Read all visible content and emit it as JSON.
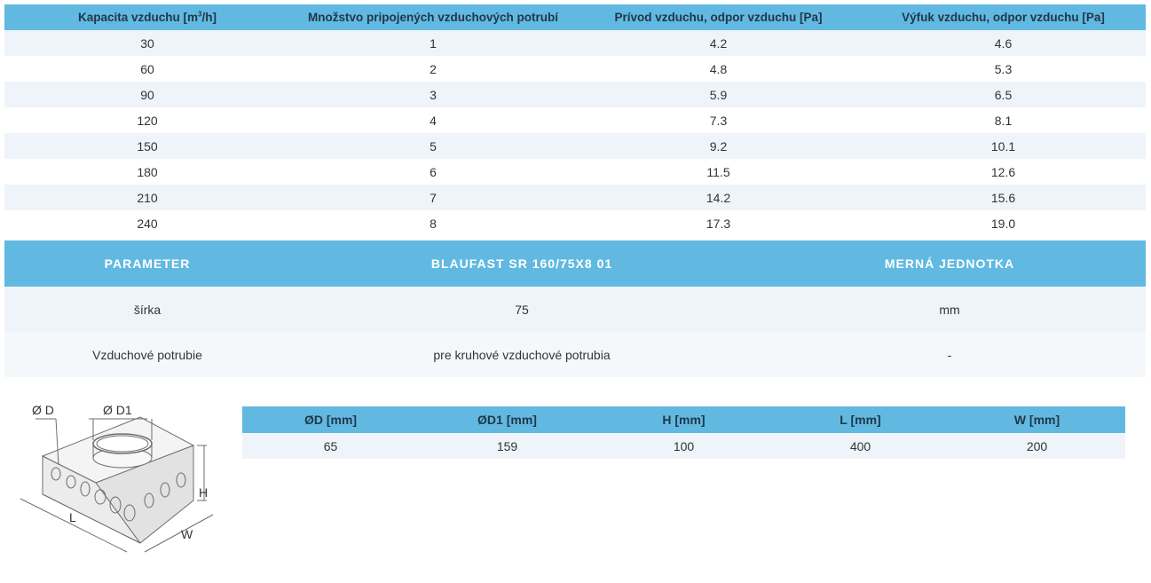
{
  "capacity_table": {
    "headers": {
      "capacity_prefix": "Kapacita vzduchu [m",
      "capacity_sup": "3",
      "capacity_suffix": "/h]",
      "ducts": "Množstvo pripojených vzduchových potrubí",
      "supply": "Prívod vzduchu, odpor vzduchu [Pa]",
      "exhaust": "Výfuk vzduchu, odpor vzduchu [Pa]"
    },
    "rows": [
      [
        "30",
        "1",
        "4.2",
        "4.6"
      ],
      [
        "60",
        "2",
        "4.8",
        "5.3"
      ],
      [
        "90",
        "3",
        "5.9",
        "6.5"
      ],
      [
        "120",
        "4",
        "7.3",
        "8.1"
      ],
      [
        "150",
        "5",
        "9.2",
        "10.1"
      ],
      [
        "180",
        "6",
        "11.5",
        "12.6"
      ],
      [
        "210",
        "7",
        "14.2",
        "15.6"
      ],
      [
        "240",
        "8",
        "17.3",
        "19.0"
      ]
    ]
  },
  "parameter_table": {
    "headers": [
      "PARAMETER",
      "BLAUFAST SR 160/75X8 01",
      "MERNÁ JEDNOTKA"
    ],
    "rows": [
      [
        "šírka",
        "75",
        "mm"
      ],
      [
        "Vzduchové potrubie",
        "pre kruhové vzduchové potrubia",
        "-"
      ]
    ]
  },
  "dimension_table": {
    "headers": [
      "ØD [mm]",
      "ØD1 [mm]",
      "H [mm]",
      "L [mm]",
      "W [mm]"
    ],
    "values": [
      "65",
      "159",
      "100",
      "400",
      "200"
    ]
  },
  "drawing": {
    "label_d": "Ø D",
    "label_d1": "Ø D1",
    "label_h": "H",
    "label_l": "L",
    "label_w": "W"
  }
}
